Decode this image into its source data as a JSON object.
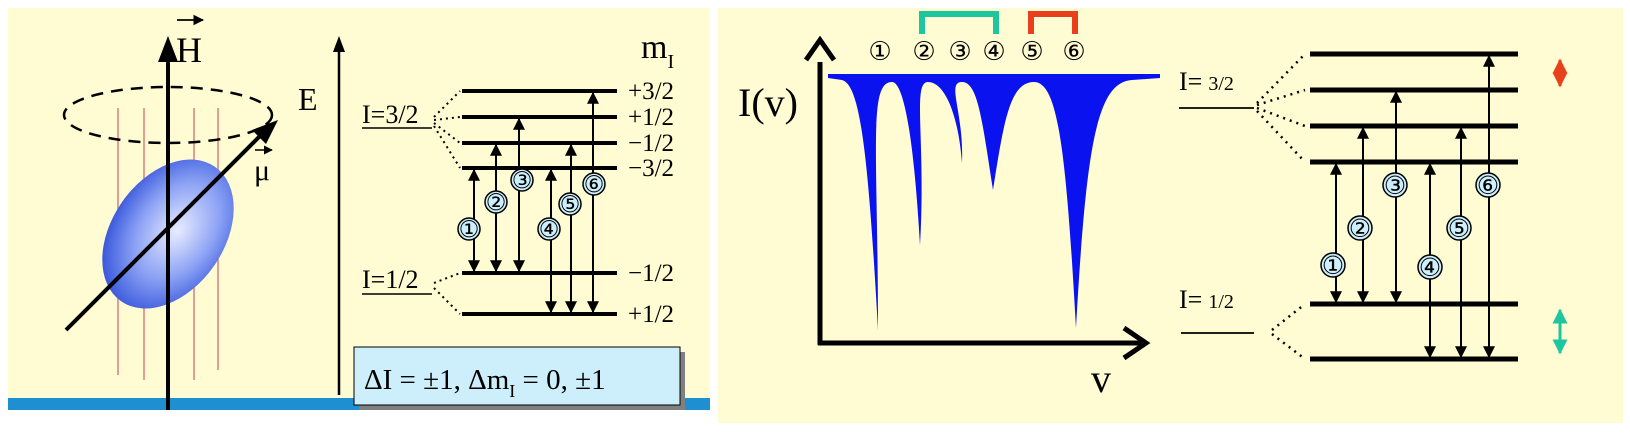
{
  "left_panel": {
    "field_label_H": "H",
    "moment_label": "μ",
    "energy_axis_label": "E",
    "mI_label": "m",
    "mI_subscript": "I",
    "upper_state": "I=3/2",
    "lower_state": "I=1/2",
    "upper_levels": [
      "+3/2",
      "+1/2",
      "−1/2",
      "−3/2"
    ],
    "lower_levels": [
      "−1/2",
      "+1/2"
    ],
    "transitions": [
      "①",
      "②",
      "③",
      "④",
      "⑤",
      "⑥"
    ],
    "selection_rule": {
      "prefix": "ΔI = ±1, Δm",
      "subscript": "I",
      "suffix": " = 0, ±1"
    }
  },
  "right_panel": {
    "spectrum_title": "I(v)",
    "x_axis_label": "v",
    "peak_labels": [
      "①",
      "②",
      "③",
      "④",
      "⑤",
      "⑥"
    ],
    "upper_state": "I=",
    "upper_state_value": "3/2",
    "lower_state": "I=",
    "lower_state_value": "1/2",
    "transitions": [
      "①",
      "②",
      "③",
      "④",
      "⑤",
      "⑥"
    ],
    "colors": {
      "teal": "#1ec6a0",
      "red": "#e8401c",
      "spectrum": "#0a12f0",
      "background": "#fffbd2"
    }
  }
}
